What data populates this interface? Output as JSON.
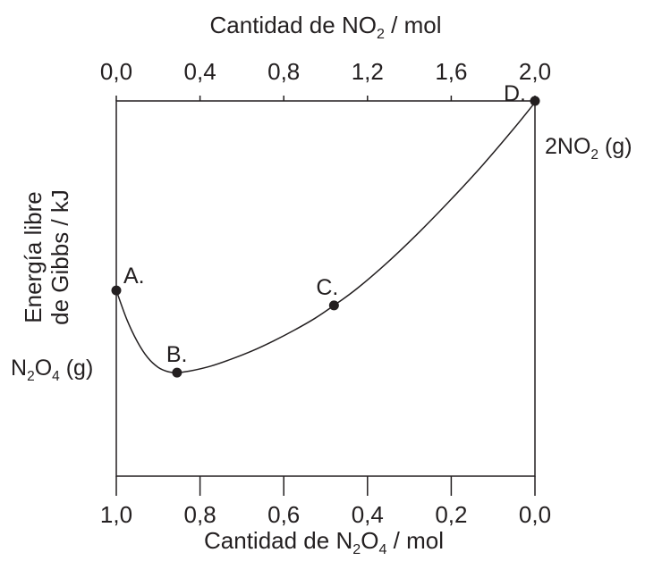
{
  "chart_data": {
    "type": "line",
    "x_top": {
      "title": [
        "Cantidad de NO",
        "2",
        " / mol"
      ],
      "ticks": [
        0.0,
        0.4,
        0.8,
        1.2,
        1.6,
        2.0
      ],
      "tick_labels": [
        "0,0",
        "0,4",
        "0,8",
        "1,2",
        "1,6",
        "2,0"
      ],
      "range": [
        0.0,
        2.0
      ]
    },
    "x_bottom": {
      "title": [
        "Cantidad de N",
        "2",
        "O",
        "4",
        " / mol"
      ],
      "ticks": [
        1.0,
        0.8,
        0.6,
        0.4,
        0.2,
        0.0
      ],
      "tick_labels": [
        "1,0",
        "0,8",
        "0,6",
        "0,4",
        "0,2",
        "0,0"
      ],
      "range": [
        1.0,
        0.0
      ]
    },
    "y": {
      "title_lines": [
        "Energía libre",
        "de Gibbs / kJ"
      ],
      "ticks": []
    },
    "left_label": [
      "N",
      "2",
      "O",
      "4",
      " (g)"
    ],
    "right_label": [
      "2NO",
      "2",
      " (g)"
    ],
    "curve_no2": [
      0.0,
      0.05,
      0.1,
      0.15,
      0.2,
      0.25,
      0.29,
      0.35,
      0.45,
      0.55,
      0.65,
      0.75,
      0.85,
      0.95,
      1.04,
      1.15,
      1.3,
      1.45,
      1.6,
      1.75,
      1.9,
      2.0
    ],
    "curve_g": [
      0.495,
      0.418,
      0.359,
      0.316,
      0.29,
      0.278,
      0.276,
      0.28,
      0.293,
      0.312,
      0.334,
      0.36,
      0.389,
      0.421,
      0.455,
      0.5,
      0.572,
      0.652,
      0.738,
      0.829,
      0.927,
      0.996
    ],
    "points": [
      {
        "label": "A.",
        "no2": 0.0,
        "g": 0.495
      },
      {
        "label": "B.",
        "no2": 0.29,
        "g": 0.276
      },
      {
        "label": "C.",
        "no2": 1.04,
        "g": 0.455
      },
      {
        "label": "D.",
        "no2": 2.0,
        "g": 1.0
      }
    ],
    "grid": false,
    "colors": {
      "ink": "#231f20",
      "background": "#ffffff"
    }
  }
}
